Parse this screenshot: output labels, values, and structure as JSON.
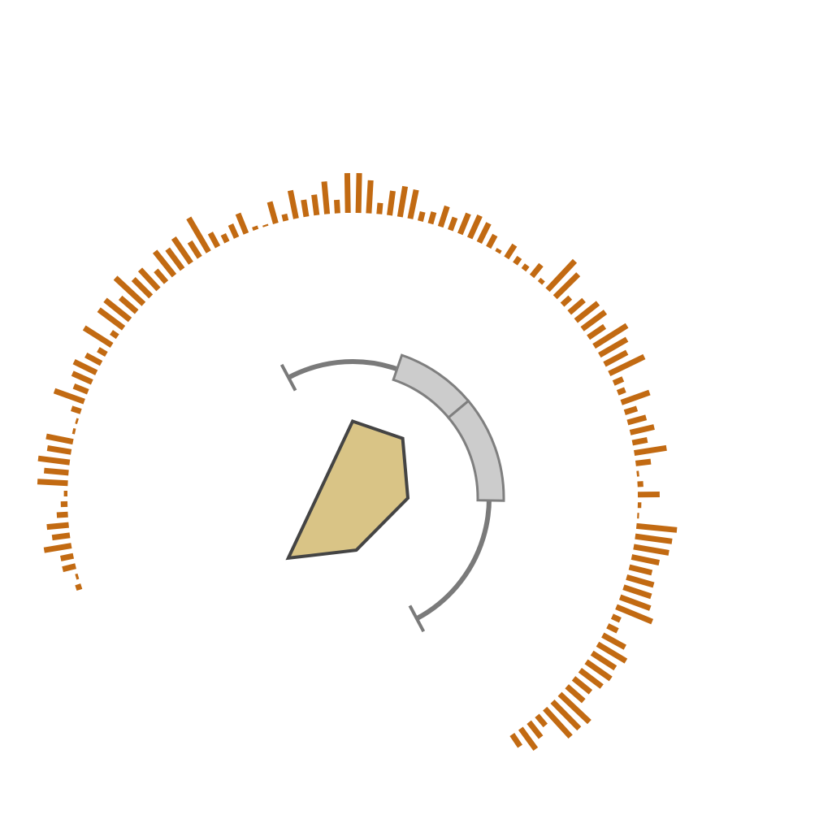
{
  "chart_data": {
    "type": "radial-bar",
    "title": "",
    "xlabel": "",
    "ylabel": "",
    "grid": false,
    "legend": "none",
    "colors": {
      "bar": "#c26a12",
      "polygon_fill": "#d9c486",
      "polygon_stroke": "#444444",
      "arc_stroke": "#7a7a7a",
      "band_fill": "#cccccc",
      "band_stroke": "#7f7f7f"
    },
    "bar_series": {
      "angle_start_deg": 252,
      "angle_end_deg": 506,
      "values": [
        0.13,
        0.06,
        0.3,
        0.29,
        0.62,
        0.4,
        0.49,
        0.25,
        0.15,
        0.08,
        0.68,
        0.55,
        0.71,
        0.54,
        0.61,
        0.06,
        0.05,
        0.22,
        0.71,
        0.34,
        0.48,
        0.56,
        0.39,
        0.21,
        0.73,
        0.17,
        0.69,
        0.71,
        0.48,
        0.86,
        0.55,
        0.6,
        0.35,
        0.69,
        0.56,
        0.68,
        0.41,
        0.88,
        0.35,
        0.19,
        0.32,
        0.48,
        0.08,
        0.04,
        0.5,
        0.15,
        0.64,
        0.38,
        0.46,
        0.73,
        0.3,
        0.89,
        0.89,
        0.74,
        0.25,
        0.55,
        0.69,
        0.66,
        0.21,
        0.27,
        0.48,
        0.3,
        0.49,
        0.55,
        0.48,
        0.31,
        0.08,
        0.34,
        0.17,
        0.13,
        0.33,
        0.1,
        0.89,
        0.73,
        0.24,
        0.43,
        0.63,
        0.64,
        0.44,
        0.87,
        0.71,
        0.57,
        0.87,
        0.23,
        0.18,
        0.67,
        0.29,
        0.43,
        0.55,
        0.34,
        0.73,
        0.34,
        0.05,
        0.13,
        0.49,
        0.08,
        0.04,
        0.91,
        0.83,
        0.8,
        0.63,
        0.52,
        0.63,
        0.65,
        0.72,
        0.87,
        0.2,
        0.25,
        0.57,
        0.74,
        0.62,
        0.67,
        0.61,
        0.49,
        0.5,
        0.91,
        0.85,
        0.85,
        0.29,
        0.43,
        0.57,
        0.32
      ]
    },
    "polygon": {
      "axes_deg": [
        0,
        40,
        90,
        176,
        227
      ],
      "values": [
        0.75,
        0.76,
        0.54,
        0.51,
        0.86
      ]
    },
    "range_arc": {
      "start_deg": -28,
      "end_deg": 152
    },
    "highlight_bands": [
      {
        "start_deg": 19,
        "end_deg": 50
      },
      {
        "start_deg": 50,
        "end_deg": 91
      }
    ]
  }
}
